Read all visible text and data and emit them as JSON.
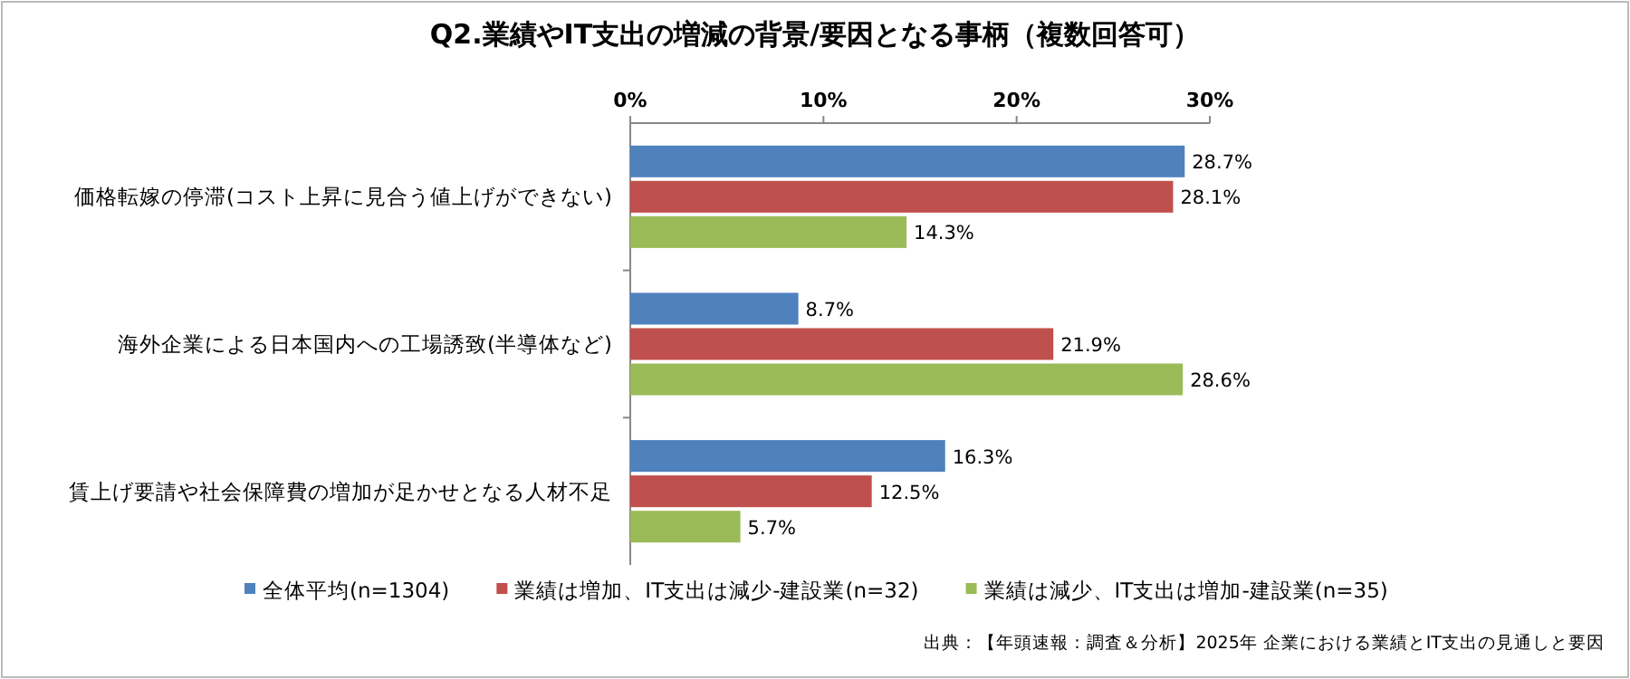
{
  "chart_data": {
    "type": "bar",
    "orientation": "horizontal",
    "title": "Q2.業績やIT支出の増減の背景/要因となる事柄（複数回答可）",
    "categories": [
      "価格転嫁の停滞(コスト上昇に見合う値上げができない)",
      "海外企業による日本国内への工場誘致(半導体など)",
      "賃上げ要請や社会保障費の増加が足かせとなる人材不足"
    ],
    "series": [
      {
        "name": "全体平均(n=1304)",
        "color": "#4f81bd",
        "values": [
          28.7,
          8.7,
          16.3
        ],
        "value_labels": [
          "28.7%",
          "8.7%",
          "16.3%"
        ]
      },
      {
        "name": "業績は増加、IT支出は減少-建設業(n=32)",
        "color": "#c0504d",
        "values": [
          28.1,
          21.9,
          12.5
        ],
        "value_labels": [
          "28.1%",
          "21.9%",
          "12.5%"
        ]
      },
      {
        "name": "業績は減少、IT支出は増加-建設業(n=35)",
        "color": "#9bbb59",
        "values": [
          14.3,
          28.6,
          5.7
        ],
        "value_labels": [
          "14.3%",
          "28.6%",
          "5.7%"
        ]
      }
    ],
    "xlim": [
      0,
      30
    ],
    "xticks": [
      {
        "value": 0,
        "label": "0%"
      },
      {
        "value": 10,
        "label": "10%"
      },
      {
        "value": 20,
        "label": "20%"
      },
      {
        "value": 30,
        "label": "30%"
      }
    ],
    "grid": false,
    "legend": "bottom",
    "annotations": [
      "出典：【年頭速報：調査＆分析】2025年 企業における業績とIT支出の見通しと要因"
    ]
  }
}
